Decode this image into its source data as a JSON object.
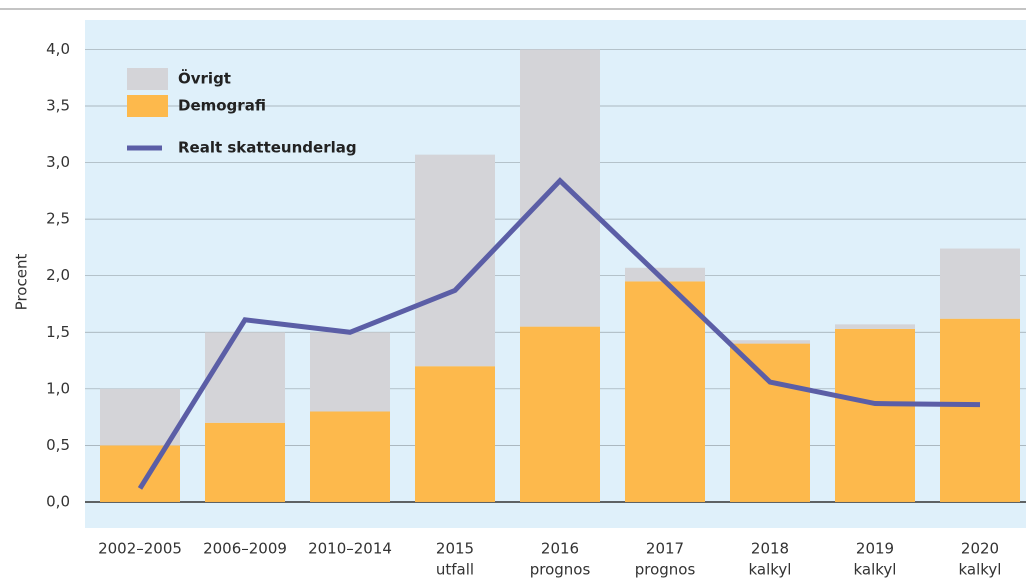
{
  "chart_data": {
    "type": "bar",
    "categories": [
      [
        "2002–2005"
      ],
      [
        "2006–2009"
      ],
      [
        "2010–2014"
      ],
      [
        "2015",
        "utfall"
      ],
      [
        "2016",
        "prognos"
      ],
      [
        "2017",
        "prognos"
      ],
      [
        "2018",
        "kalkyl"
      ],
      [
        "2019",
        "kalkyl"
      ],
      [
        "2020",
        "kalkyl"
      ]
    ],
    "series": [
      {
        "name": "Demografi",
        "color": "#fdb94c",
        "values": [
          0.5,
          0.7,
          0.8,
          1.2,
          1.55,
          1.95,
          1.4,
          1.53,
          1.62
        ]
      },
      {
        "name": "Övrigt",
        "color": "#d4d4d8",
        "values": [
          0.5,
          0.8,
          0.7,
          1.87,
          2.45,
          0.12,
          0.03,
          0.04,
          0.62
        ]
      },
      {
        "name": "Realt skatteunderlag",
        "color": "#5b5ea6",
        "type": "line",
        "values": [
          0.12,
          1.61,
          1.5,
          1.87,
          2.84,
          1.95,
          1.06,
          0.87,
          0.86
        ]
      }
    ],
    "y_label": "Procent",
    "ylim": [
      -0.23,
      4.26
    ],
    "yticks": [
      {
        "value": 0,
        "label": "0,0"
      },
      {
        "value": 0.5,
        "label": "0,5"
      },
      {
        "value": 1,
        "label": "1,0"
      },
      {
        "value": 1.5,
        "label": "1,5"
      },
      {
        "value": 2,
        "label": "2,0"
      },
      {
        "value": 2.5,
        "label": "2,5"
      },
      {
        "value": 3,
        "label": "3,0"
      },
      {
        "value": 3.5,
        "label": "3,5"
      },
      {
        "value": 4,
        "label": "4,0"
      }
    ],
    "grid": true
  }
}
